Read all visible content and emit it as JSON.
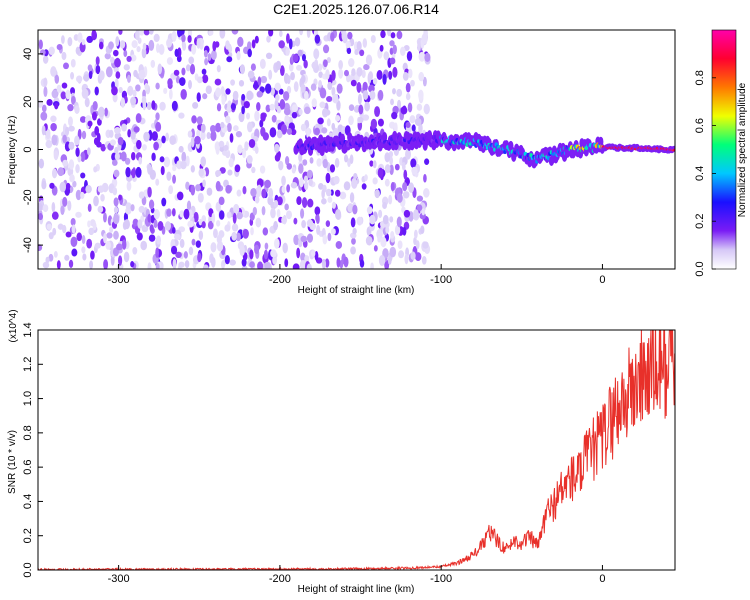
{
  "title": "C2E1.2025.126.07.06.R14",
  "chart_data": [
    {
      "type": "heatmap",
      "title": "C2E1.2025.126.07.06.R14",
      "xlabel": "Height of straight line (km)",
      "ylabel": "Frequency (Hz)",
      "xlim": [
        -350,
        45
      ],
      "ylim": [
        -50,
        50
      ],
      "x_ticks": [
        "-300",
        "-200",
        "-100",
        "0"
      ],
      "y_ticks": [
        "-40",
        "-20",
        "0",
        "20",
        "40"
      ],
      "grid": false,
      "colorbar": {
        "label": "Normalized spectral amplitude",
        "range": [
          0.0,
          1.0
        ],
        "ticks": [
          "0.0",
          "0.2",
          "0.4",
          "0.6",
          "0.8"
        ],
        "colormap": [
          "#ffffff",
          "#d6c8f7",
          "#7a1cf5",
          "#1a10ff",
          "#00c8ff",
          "#00ff7a",
          "#f0ff00",
          "#ff7800",
          "#ff0030",
          "#ff00aa"
        ]
      },
      "features": [
        {
          "name": "broadband noise",
          "x_range": [
            -350,
            -108
          ],
          "freq_range": [
            -50,
            50
          ],
          "level": 0.15
        },
        {
          "name": "signal trace",
          "points": [
            [
              -190,
              1
            ],
            [
              -150,
              3
            ],
            [
              -120,
              4
            ],
            [
              -100,
              4
            ],
            [
              -80,
              3
            ],
            [
              -60,
              0
            ],
            [
              -40,
              -4
            ],
            [
              -20,
              0
            ],
            [
              0,
              1
            ],
            [
              45,
              0
            ]
          ]
        }
      ]
    },
    {
      "type": "line",
      "xlabel": "Height of straight line (km)",
      "ylabel": "SNR (10 * v/v)",
      "y_multiplier": "(x10^4)",
      "xlim": [
        -350,
        45
      ],
      "ylim": [
        0,
        1.4
      ],
      "x_ticks": [
        "-300",
        "-200",
        "-100",
        "0"
      ],
      "y_ticks": [
        "0.0",
        "0.2",
        "0.4",
        "0.6",
        "0.8",
        "1.0",
        "1.2",
        "1.4"
      ],
      "color": "#e8302a",
      "series": [
        {
          "x": [
            -350,
            -300,
            -250,
            -200,
            -150,
            -120,
            -110,
            -100,
            -90,
            -80,
            -75,
            -70,
            -65,
            -60,
            -55,
            -50,
            -45,
            -40,
            -35,
            -30,
            -25,
            -20,
            -15,
            -10,
            -5,
            0,
            5,
            10,
            15,
            20,
            25,
            30,
            35,
            40,
            45
          ],
          "values": [
            0.003,
            0.004,
            0.004,
            0.005,
            0.007,
            0.012,
            0.015,
            0.02,
            0.04,
            0.09,
            0.14,
            0.22,
            0.17,
            0.12,
            0.17,
            0.16,
            0.19,
            0.14,
            0.32,
            0.39,
            0.47,
            0.53,
            0.55,
            0.64,
            0.71,
            0.77,
            0.87,
            0.95,
            1.01,
            1.06,
            1.13,
            1.16,
            1.19,
            1.21,
            1.24
          ]
        }
      ]
    }
  ]
}
